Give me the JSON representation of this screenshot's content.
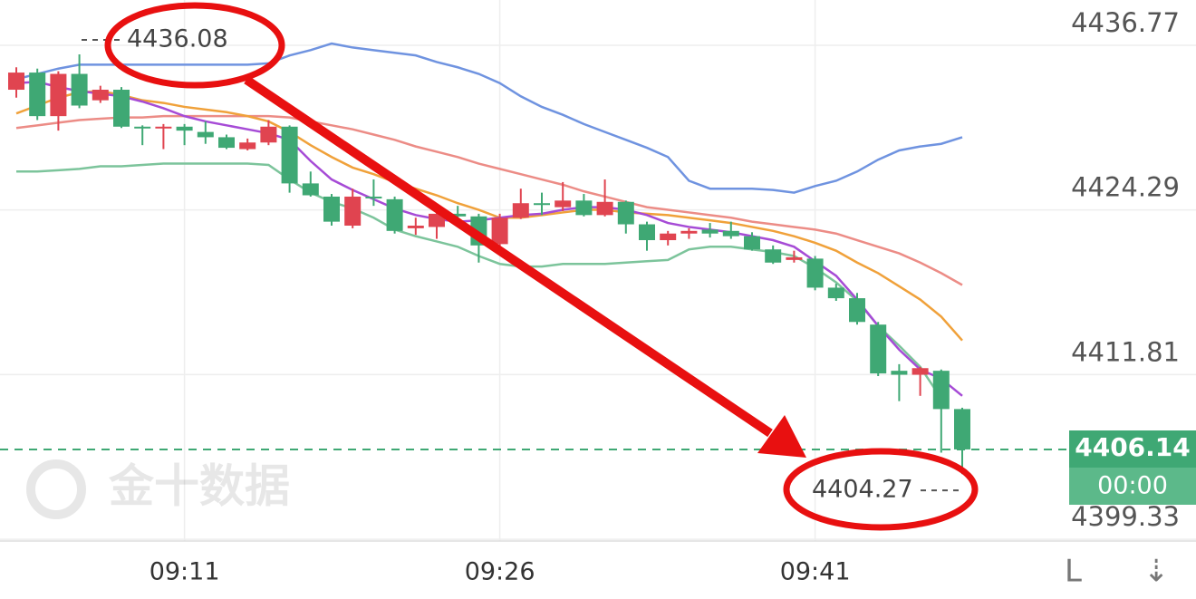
{
  "chart_data": {
    "type": "candlestick",
    "categories": [
      null,
      null,
      null,
      null,
      null,
      null,
      null,
      null,
      "09:11",
      null,
      null,
      null,
      null,
      null,
      null,
      null,
      null,
      null,
      null,
      null,
      null,
      null,
      null,
      "09:26",
      null,
      null,
      null,
      null,
      null,
      null,
      null,
      null,
      null,
      null,
      null,
      null,
      null,
      null,
      "09:41",
      null,
      null,
      null,
      null,
      null,
      null,
      null
    ],
    "open": [
      4433.4,
      4434.7,
      4431.4,
      4434.6,
      4432.6,
      4433.4,
      4430.6,
      4430.5,
      4430.6,
      4430.2,
      4429.8,
      4428.9,
      4429.4,
      4430.6,
      4426.3,
      4425.3,
      4423.1,
      4425.3,
      4425.1,
      4422.9,
      4423,
      4424,
      4423.8,
      4421.7,
      4423.7,
      4424.8,
      4424.5,
      4425,
      4423.9,
      4424.9,
      4423.2,
      4422,
      4422.5,
      4422.8,
      4422.7,
      4422.3,
      4421.3,
      4420.5,
      4420.6,
      4418.4,
      4417.6,
      4415.6,
      4412.1,
      4411.8,
      4412.1,
      4409.2
    ],
    "high": [
      4435.1,
      4435,
      4434.8,
      4436.08,
      4433.7,
      4433.6,
      4430.7,
      4430.8,
      4430.8,
      4431,
      4430,
      4429.7,
      4431.1,
      4430.7,
      4427.2,
      4425.5,
      4425.9,
      4426.6,
      4425.3,
      4423.7,
      4424.2,
      4424.6,
      4424,
      4424,
      4425.9,
      4425.6,
      4426.4,
      4425.5,
      4426.6,
      4425,
      4423.4,
      4422.7,
      4422.9,
      4423.3,
      4423.4,
      4422.6,
      4421.6,
      4421.2,
      4420.8,
      4418.7,
      4418,
      4415.8,
      4412.6,
      4412.4,
      4412.2,
      4409.3
    ],
    "low": [
      4432.8,
      4431.1,
      4430.3,
      4432,
      4432.4,
      4430.5,
      4429.2,
      4428.9,
      4429.2,
      4429.3,
      4428.9,
      4428.8,
      4429.2,
      4425.6,
      4425.3,
      4423.1,
      4422.9,
      4424.6,
      4422.5,
      4422.4,
      4422.1,
      4423.5,
      4420.3,
      4421.5,
      4423.6,
      4423.9,
      4424.2,
      4423.8,
      4423.8,
      4422.5,
      4421.2,
      4421.6,
      4422.1,
      4422.2,
      4422.1,
      4421.2,
      4420.2,
      4420.3,
      4418.2,
      4417.4,
      4415.6,
      4411.7,
      4409.8,
      4410.2,
      4405.9,
      4404.27
    ],
    "close": [
      4434.7,
      4431.4,
      4434.6,
      4432.2,
      4433.4,
      4430.6,
      4430.5,
      4430.6,
      4430.3,
      4429.8,
      4429,
      4429.4,
      4430.6,
      4426.3,
      4425.4,
      4423.4,
      4425.3,
      4425.2,
      4422.7,
      4423.1,
      4424,
      4423.8,
      4421.6,
      4423.7,
      4424.8,
      4424.7,
      4425,
      4423.9,
      4424.9,
      4423.2,
      4422,
      4422.5,
      4422.7,
      4422.5,
      4422.3,
      4421.3,
      4420.3,
      4420.7,
      4418.4,
      4417.6,
      4415.8,
      4411.9,
      4411.8,
      4412.3,
      4409.2,
      4406.14
    ],
    "up_color": "#e04450",
    "down_color": "#3fa874",
    "lines": [
      {
        "color": "#6f93e0",
        "values": [
          4434.2,
          4434.6,
          4435,
          4435.3,
          4435.3,
          4435.3,
          4435.3,
          4435.3,
          4435.3,
          4435.3,
          4435.3,
          4435.3,
          4435.4,
          4436,
          4436.4,
          4436.9,
          4436.6,
          4436.4,
          4436.2,
          4436,
          4435.5,
          4435.1,
          4434.6,
          4433.9,
          4432.9,
          4432.1,
          4431.5,
          4430.8,
          4430.2,
          4429.6,
          4429,
          4428.3,
          4426.5,
          4425.9,
          4425.9,
          4425.9,
          4425.8,
          4425.6,
          4426.1,
          4426.5,
          4427.2,
          4428.1,
          4428.8,
          4429.1,
          4429.3,
          4429.8
        ]
      },
      {
        "color": "#7cc49b",
        "values": [
          4427.2,
          4427.2,
          4427.3,
          4427.4,
          4427.6,
          4427.6,
          4427.7,
          4427.8,
          4427.8,
          4427.8,
          4427.8,
          4427.8,
          4427.7,
          4426.6,
          4425.6,
          4424.9,
          4424.4,
          4423.7,
          4422.8,
          4422.3,
          4421.9,
          4421.5,
          4420.8,
          4420.2,
          4420,
          4420,
          4420.2,
          4420.2,
          4420.2,
          4420.3,
          4420.4,
          4420.5,
          4421.3,
          4421.5,
          4421.5,
          4421.3,
          4421.1,
          4420.8,
          4419.9,
          4418.8,
          4417.4,
          4415.5,
          4414,
          4412.4,
          4410,
          null
        ]
      },
      {
        "color": "#ec8c86",
        "values": [
          4430.5,
          4430.7,
          4430.9,
          4431.1,
          4431.2,
          4431.3,
          4431.3,
          4431.4,
          4431.4,
          4431.4,
          4431.4,
          4431.4,
          4431.4,
          4431.3,
          4431,
          4430.7,
          4430.4,
          4430,
          4429.6,
          4429.1,
          4428.7,
          4428.3,
          4427.8,
          4427.4,
          4427,
          4426.6,
          4426.2,
          4425.7,
          4425.3,
          4424.9,
          4424.5,
          4424.3,
          4424.1,
          4423.9,
          4423.7,
          4423.4,
          4423.2,
          4423,
          4422.8,
          4422.5,
          4422,
          4421.5,
          4421,
          4420.3,
          4419.5,
          4418.6
        ]
      },
      {
        "color": "#f0a13a",
        "values": [
          4431.6,
          4432.2,
          4432.8,
          4433.2,
          4433.3,
          4433,
          4432.6,
          4432.4,
          4432.1,
          4431.9,
          4431.7,
          4431.4,
          4431,
          4430.2,
          4429.2,
          4428.3,
          4427.5,
          4427,
          4426.4,
          4425.9,
          4425.4,
          4424.8,
          4424.3,
          4423.7,
          4423.7,
          4423.9,
          4424.1,
          4424.3,
          4424.3,
          4424.1,
          4424,
          4423.9,
          4423.7,
          4423.5,
          4423.3,
          4423,
          4422.7,
          4422.3,
          4421.8,
          4421.2,
          4420.3,
          4419.5,
          4418.5,
          4417.5,
          4416.2,
          4414.4
        ]
      },
      {
        "color": "#a64bd6",
        "values": [
          4433.9,
          4434,
          4433.6,
          4433.3,
          4433.1,
          4432.9,
          4432.5,
          4432,
          4431.4,
          4431,
          4430.7,
          4430.4,
          4430.1,
          4429.6,
          4428,
          4426.6,
          4425.8,
          4425.1,
          4424.4,
          4423.9,
          4423.6,
          4423.4,
          4423.5,
          4423.7,
          4423.9,
          4424,
          4424.3,
          4424.5,
          4424.5,
          4424.3,
          4423.9,
          4423.3,
          4423,
          4422.8,
          4422.6,
          4422.3,
          4422,
          4421.5,
          4420.4,
          4419.3,
          4417.5,
          4415.5,
          4413.7,
          4412.2,
          4411.5,
          4410.2
        ]
      }
    ],
    "ylim": [
      4399.2,
      4440.2
    ],
    "yticks": [
      4436.77,
      4424.29,
      4411.81,
      4399.33
    ],
    "grid": true,
    "countdown": "00:00",
    "watermark": "金十数据"
  }
}
